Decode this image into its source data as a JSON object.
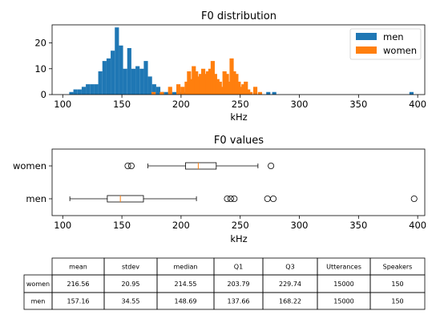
{
  "chart_data": [
    {
      "type": "histogram",
      "title": "F0 distribution",
      "xlabel": "kHz",
      "ylabel": "",
      "xlim": [
        91,
        406
      ],
      "ylim": [
        0,
        27
      ],
      "xticks": [
        100,
        150,
        200,
        250,
        300,
        350,
        400
      ],
      "yticks": [
        0,
        10,
        20
      ],
      "bin_width": 3.5,
      "legend_position": "top-right",
      "series": [
        {
          "name": "men",
          "color": "#1f77b4",
          "bins": [
            {
              "x": 105.5,
              "y": 1
            },
            {
              "x": 109,
              "y": 2
            },
            {
              "x": 112.5,
              "y": 2
            },
            {
              "x": 116,
              "y": 3
            },
            {
              "x": 119.5,
              "y": 4
            },
            {
              "x": 123,
              "y": 4
            },
            {
              "x": 126.5,
              "y": 4
            },
            {
              "x": 130,
              "y": 9
            },
            {
              "x": 133.5,
              "y": 13
            },
            {
              "x": 137,
              "y": 14
            },
            {
              "x": 140.5,
              "y": 17
            },
            {
              "x": 144,
              "y": 26
            },
            {
              "x": 147.5,
              "y": 19
            },
            {
              "x": 151,
              "y": 10
            },
            {
              "x": 154.5,
              "y": 18
            },
            {
              "x": 158,
              "y": 10
            },
            {
              "x": 161.5,
              "y": 11
            },
            {
              "x": 165,
              "y": 10
            },
            {
              "x": 168.5,
              "y": 13
            },
            {
              "x": 172,
              "y": 7
            },
            {
              "x": 175.5,
              "y": 4
            },
            {
              "x": 179,
              "y": 3
            },
            {
              "x": 182.5,
              "y": 1
            },
            {
              "x": 186,
              "y": 1
            },
            {
              "x": 189.5,
              "y": 1
            },
            {
              "x": 193,
              "y": 1
            },
            {
              "x": 196.5,
              "y": 1
            },
            {
              "x": 200,
              "y": 1
            },
            {
              "x": 212,
              "y": 1
            },
            {
              "x": 272,
              "y": 1
            },
            {
              "x": 277,
              "y": 1
            },
            {
              "x": 393,
              "y": 1
            }
          ]
        },
        {
          "name": "women",
          "color": "#ff7f0e",
          "bins": [
            {
              "x": 175,
              "y": 1
            },
            {
              "x": 182,
              "y": 1
            },
            {
              "x": 189,
              "y": 3
            },
            {
              "x": 196,
              "y": 4
            },
            {
              "x": 199.5,
              "y": 3
            },
            {
              "x": 203,
              "y": 5
            },
            {
              "x": 205,
              "y": 9
            },
            {
              "x": 207,
              "y": 6
            },
            {
              "x": 209,
              "y": 11
            },
            {
              "x": 211,
              "y": 9
            },
            {
              "x": 213,
              "y": 7
            },
            {
              "x": 215,
              "y": 8
            },
            {
              "x": 217,
              "y": 10
            },
            {
              "x": 219,
              "y": 8
            },
            {
              "x": 221,
              "y": 9
            },
            {
              "x": 223,
              "y": 10
            },
            {
              "x": 225,
              "y": 13
            },
            {
              "x": 227,
              "y": 8
            },
            {
              "x": 229,
              "y": 6
            },
            {
              "x": 231,
              "y": 5
            },
            {
              "x": 233,
              "y": 3
            },
            {
              "x": 235,
              "y": 9
            },
            {
              "x": 237,
              "y": 8
            },
            {
              "x": 239,
              "y": 5
            },
            {
              "x": 241,
              "y": 14
            },
            {
              "x": 243,
              "y": 9
            },
            {
              "x": 245,
              "y": 8
            },
            {
              "x": 247,
              "y": 5
            },
            {
              "x": 249,
              "y": 3
            },
            {
              "x": 251,
              "y": 4
            },
            {
              "x": 253,
              "y": 5
            },
            {
              "x": 255,
              "y": 2
            },
            {
              "x": 257,
              "y": 1
            },
            {
              "x": 261,
              "y": 3
            },
            {
              "x": 265,
              "y": 1
            }
          ]
        }
      ]
    },
    {
      "type": "boxplot",
      "title": "F0 values",
      "xlabel": "kHz",
      "xlim": [
        91,
        406
      ],
      "xticks": [
        100,
        150,
        200,
        250,
        300,
        350,
        400
      ],
      "categories": [
        "men",
        "women"
      ],
      "series": [
        {
          "name": "men",
          "whisker_low": 106,
          "q1": 137.66,
          "median": 148.69,
          "q3": 168.22,
          "whisker_high": 213,
          "outliers": [
            239,
            242,
            245,
            273,
            278,
            397
          ]
        },
        {
          "name": "women",
          "whisker_low": 172,
          "q1": 203.79,
          "median": 214.55,
          "q3": 229.74,
          "whisker_high": 265,
          "outliers": [
            155,
            158,
            276
          ]
        }
      ]
    },
    {
      "type": "table",
      "columns": [
        "mean",
        "stdev",
        "median",
        "Q1",
        "Q3",
        "Utterances",
        "Speakers"
      ],
      "rows": [
        {
          "label": "women",
          "values": [
            "216.56",
            "20.95",
            "214.55",
            "203.79",
            "229.74",
            "15000",
            "150"
          ]
        },
        {
          "label": "men",
          "values": [
            "157.16",
            "34.55",
            "148.69",
            "137.66",
            "168.22",
            "15000",
            "150"
          ]
        }
      ]
    }
  ]
}
